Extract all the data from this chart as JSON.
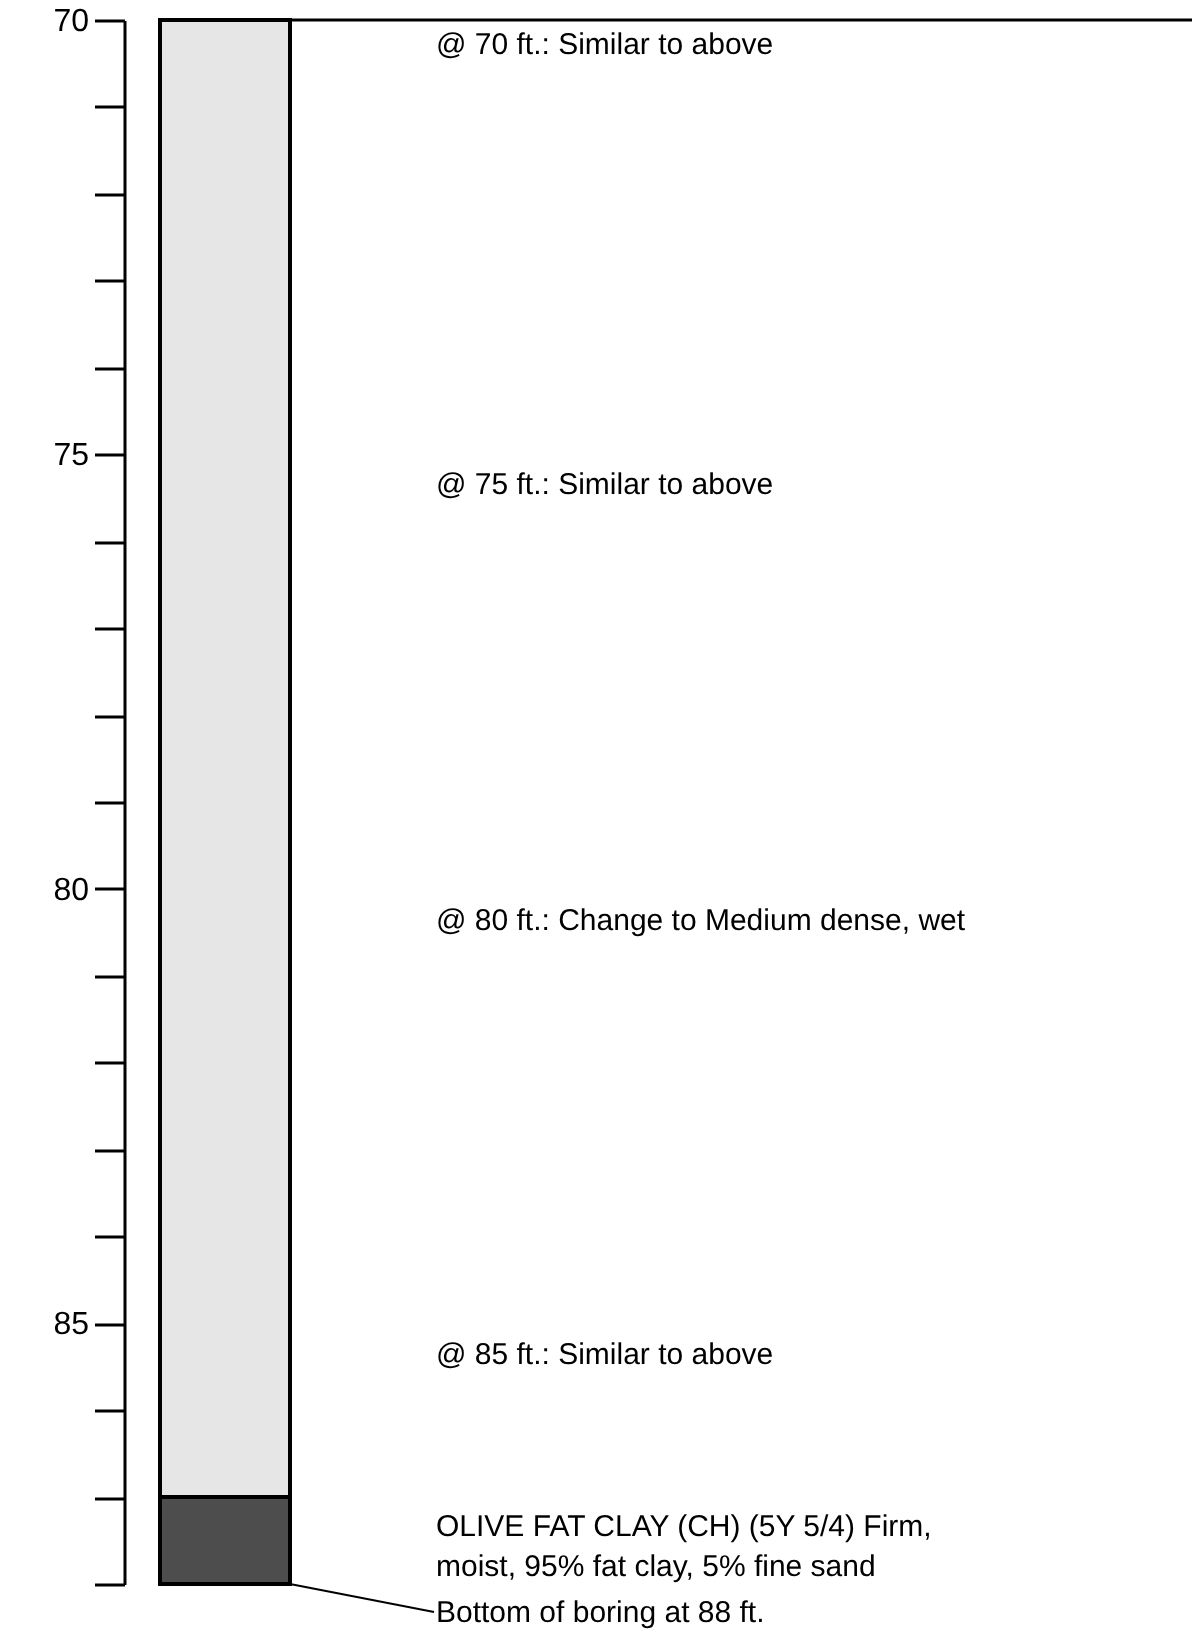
{
  "chart_data": {
    "type": "bar",
    "categories": [
      null
    ],
    "series": [
      {
        "color": "#e6e6e6",
        "values": [
          17
        ],
        "base": [
          70
        ]
      },
      {
        "color": "#4d4d4d",
        "values": [
          1
        ],
        "base": [
          87
        ]
      }
    ],
    "ylim": [
      88,
      70
    ],
    "yticks": [
      70,
      {
        "value": 71,
        "label": null
      },
      {
        "value": 72,
        "label": null
      },
      {
        "value": 73,
        "label": null
      },
      {
        "value": 74,
        "label": null
      },
      75,
      {
        "value": 76,
        "label": null
      },
      {
        "value": 77,
        "label": null
      },
      {
        "value": 78,
        "label": null
      },
      {
        "value": 79,
        "label": null
      },
      80,
      {
        "value": 81,
        "label": null
      },
      {
        "value": 82,
        "label": null
      },
      {
        "value": 83,
        "label": null
      },
      {
        "value": 84,
        "label": null
      },
      85,
      {
        "value": 86,
        "label": null
      },
      {
        "value": 87,
        "label": null
      },
      {
        "value": 88,
        "label": null
      }
    ],
    "ref_lines": [
      {
        "axis": "y",
        "value": 70,
        "color": "#000000"
      }
    ],
    "annotations": [
      "@ 70 ft.: Similar to above",
      "@ 75 ft.: Similar to above",
      "@ 80 ft.: Change to Medium dense, wet",
      "@ 85 ft.: Similar to above",
      "OLIVE FAT CLAY (CH) (5Y 5/4) Firm,\nmoist, 95% fat clay, 5% fine sand",
      "Bottom of boring at 88 ft."
    ]
  }
}
